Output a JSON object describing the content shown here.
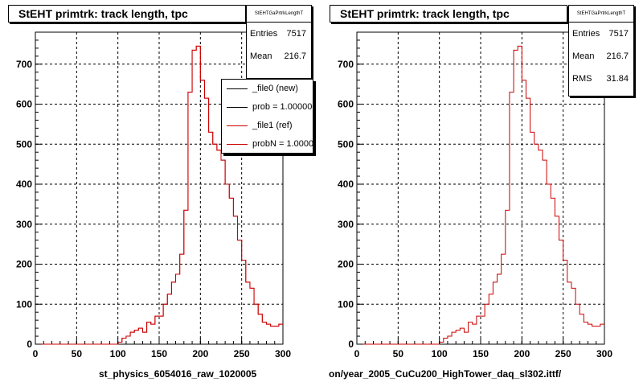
{
  "colors": {
    "new": "#000000",
    "ref": "#cc0000",
    "grid": "#000000"
  },
  "left_panel": {
    "title": "StEHT primtrk: track length, tpc",
    "stats": {
      "name": "StEHTGaPrtrkLengthT",
      "entries_label": "Entries",
      "entries": "7517",
      "mean_label": "Mean",
      "mean": "216.7"
    },
    "legend": [
      {
        "label": "_file0 (new)",
        "color": "#000000"
      },
      {
        "label": "prob = 1.000000",
        "color": "#000000"
      },
      {
        "label": "_file1 (ref)",
        "color": "#cc0000"
      },
      {
        "label": "probN = 1.000000",
        "color": "#cc0000"
      }
    ],
    "footer": "st_physics_6054016_raw_1020005"
  },
  "right_panel": {
    "title": "StEHT primtrk: track length, tpc",
    "stats": {
      "name": "StEHTGaPrtrkLengthT",
      "entries_label": "Entries",
      "entries": "7517",
      "mean_label": "Mean",
      "mean": "216.7",
      "rms_label": "RMS",
      "rms": "31.84"
    },
    "footer": "on/year_2005_CuCu200_HighTower_daq_sl302.ittf/"
  },
  "chart_data": [
    {
      "type": "bar",
      "title": "StEHT primtrk: track length, tpc",
      "xlim": [
        0,
        300
      ],
      "ylim": [
        0,
        780
      ],
      "x_ticks": [
        0,
        50,
        100,
        150,
        200,
        250,
        300
      ],
      "y_ticks": [
        0,
        100,
        200,
        300,
        400,
        500,
        600,
        700
      ],
      "grid": true,
      "bin_width": 5,
      "bin_starts": [
        0,
        5,
        10,
        15,
        20,
        25,
        30,
        35,
        40,
        45,
        50,
        55,
        60,
        65,
        70,
        75,
        80,
        85,
        90,
        95,
        100,
        105,
        110,
        115,
        120,
        125,
        130,
        135,
        140,
        145,
        150,
        155,
        160,
        165,
        170,
        175,
        180,
        185,
        190,
        195,
        200,
        205,
        210,
        215,
        220,
        225,
        230,
        235,
        240,
        245,
        250,
        255,
        260,
        265,
        270,
        275,
        280,
        285,
        290,
        295
      ],
      "series": [
        {
          "name": "_file0 (new)",
          "values": [
            0,
            0,
            0,
            0,
            0,
            0,
            0,
            0,
            0,
            0,
            0,
            0,
            0,
            0,
            0,
            0,
            0,
            0,
            0,
            0,
            5,
            15,
            20,
            30,
            35,
            40,
            30,
            55,
            50,
            70,
            70,
            100,
            125,
            155,
            175,
            225,
            335,
            630,
            735,
            745,
            660,
            615,
            530,
            500,
            485,
            460,
            400,
            365,
            320,
            260,
            210,
            155,
            140,
            100,
            75,
            55,
            50,
            45,
            45,
            50
          ]
        },
        {
          "name": "_file1 (ref)",
          "values": [
            0,
            0,
            0,
            0,
            0,
            0,
            0,
            0,
            0,
            0,
            0,
            0,
            0,
            0,
            0,
            0,
            0,
            0,
            0,
            0,
            5,
            15,
            20,
            30,
            35,
            40,
            30,
            55,
            50,
            70,
            70,
            100,
            125,
            155,
            175,
            225,
            335,
            630,
            735,
            745,
            660,
            615,
            530,
            500,
            485,
            460,
            400,
            365,
            320,
            260,
            210,
            155,
            140,
            100,
            75,
            55,
            50,
            45,
            45,
            50
          ]
        }
      ]
    },
    {
      "type": "bar",
      "title": "StEHT primtrk: track length, tpc",
      "xlim": [
        0,
        300
      ],
      "ylim": [
        0,
        780
      ],
      "x_ticks": [
        0,
        50,
        100,
        150,
        200,
        250,
        300
      ],
      "y_ticks": [
        0,
        100,
        200,
        300,
        400,
        500,
        600,
        700
      ],
      "grid": true,
      "bin_width": 5,
      "bin_starts": [
        0,
        5,
        10,
        15,
        20,
        25,
        30,
        35,
        40,
        45,
        50,
        55,
        60,
        65,
        70,
        75,
        80,
        85,
        90,
        95,
        100,
        105,
        110,
        115,
        120,
        125,
        130,
        135,
        140,
        145,
        150,
        155,
        160,
        165,
        170,
        175,
        180,
        185,
        190,
        195,
        200,
        205,
        210,
        215,
        220,
        225,
        230,
        235,
        240,
        245,
        250,
        255,
        260,
        265,
        270,
        275,
        280,
        285,
        290,
        295
      ],
      "series": [
        {
          "name": "_file1 (ref)",
          "values": [
            0,
            0,
            0,
            0,
            0,
            0,
            0,
            0,
            0,
            0,
            0,
            0,
            0,
            0,
            0,
            0,
            0,
            0,
            0,
            0,
            5,
            15,
            20,
            30,
            35,
            40,
            30,
            55,
            50,
            70,
            70,
            100,
            125,
            155,
            175,
            225,
            335,
            630,
            735,
            745,
            660,
            615,
            530,
            500,
            485,
            460,
            400,
            365,
            320,
            260,
            210,
            155,
            140,
            100,
            75,
            55,
            50,
            45,
            45,
            50
          ]
        }
      ]
    }
  ]
}
